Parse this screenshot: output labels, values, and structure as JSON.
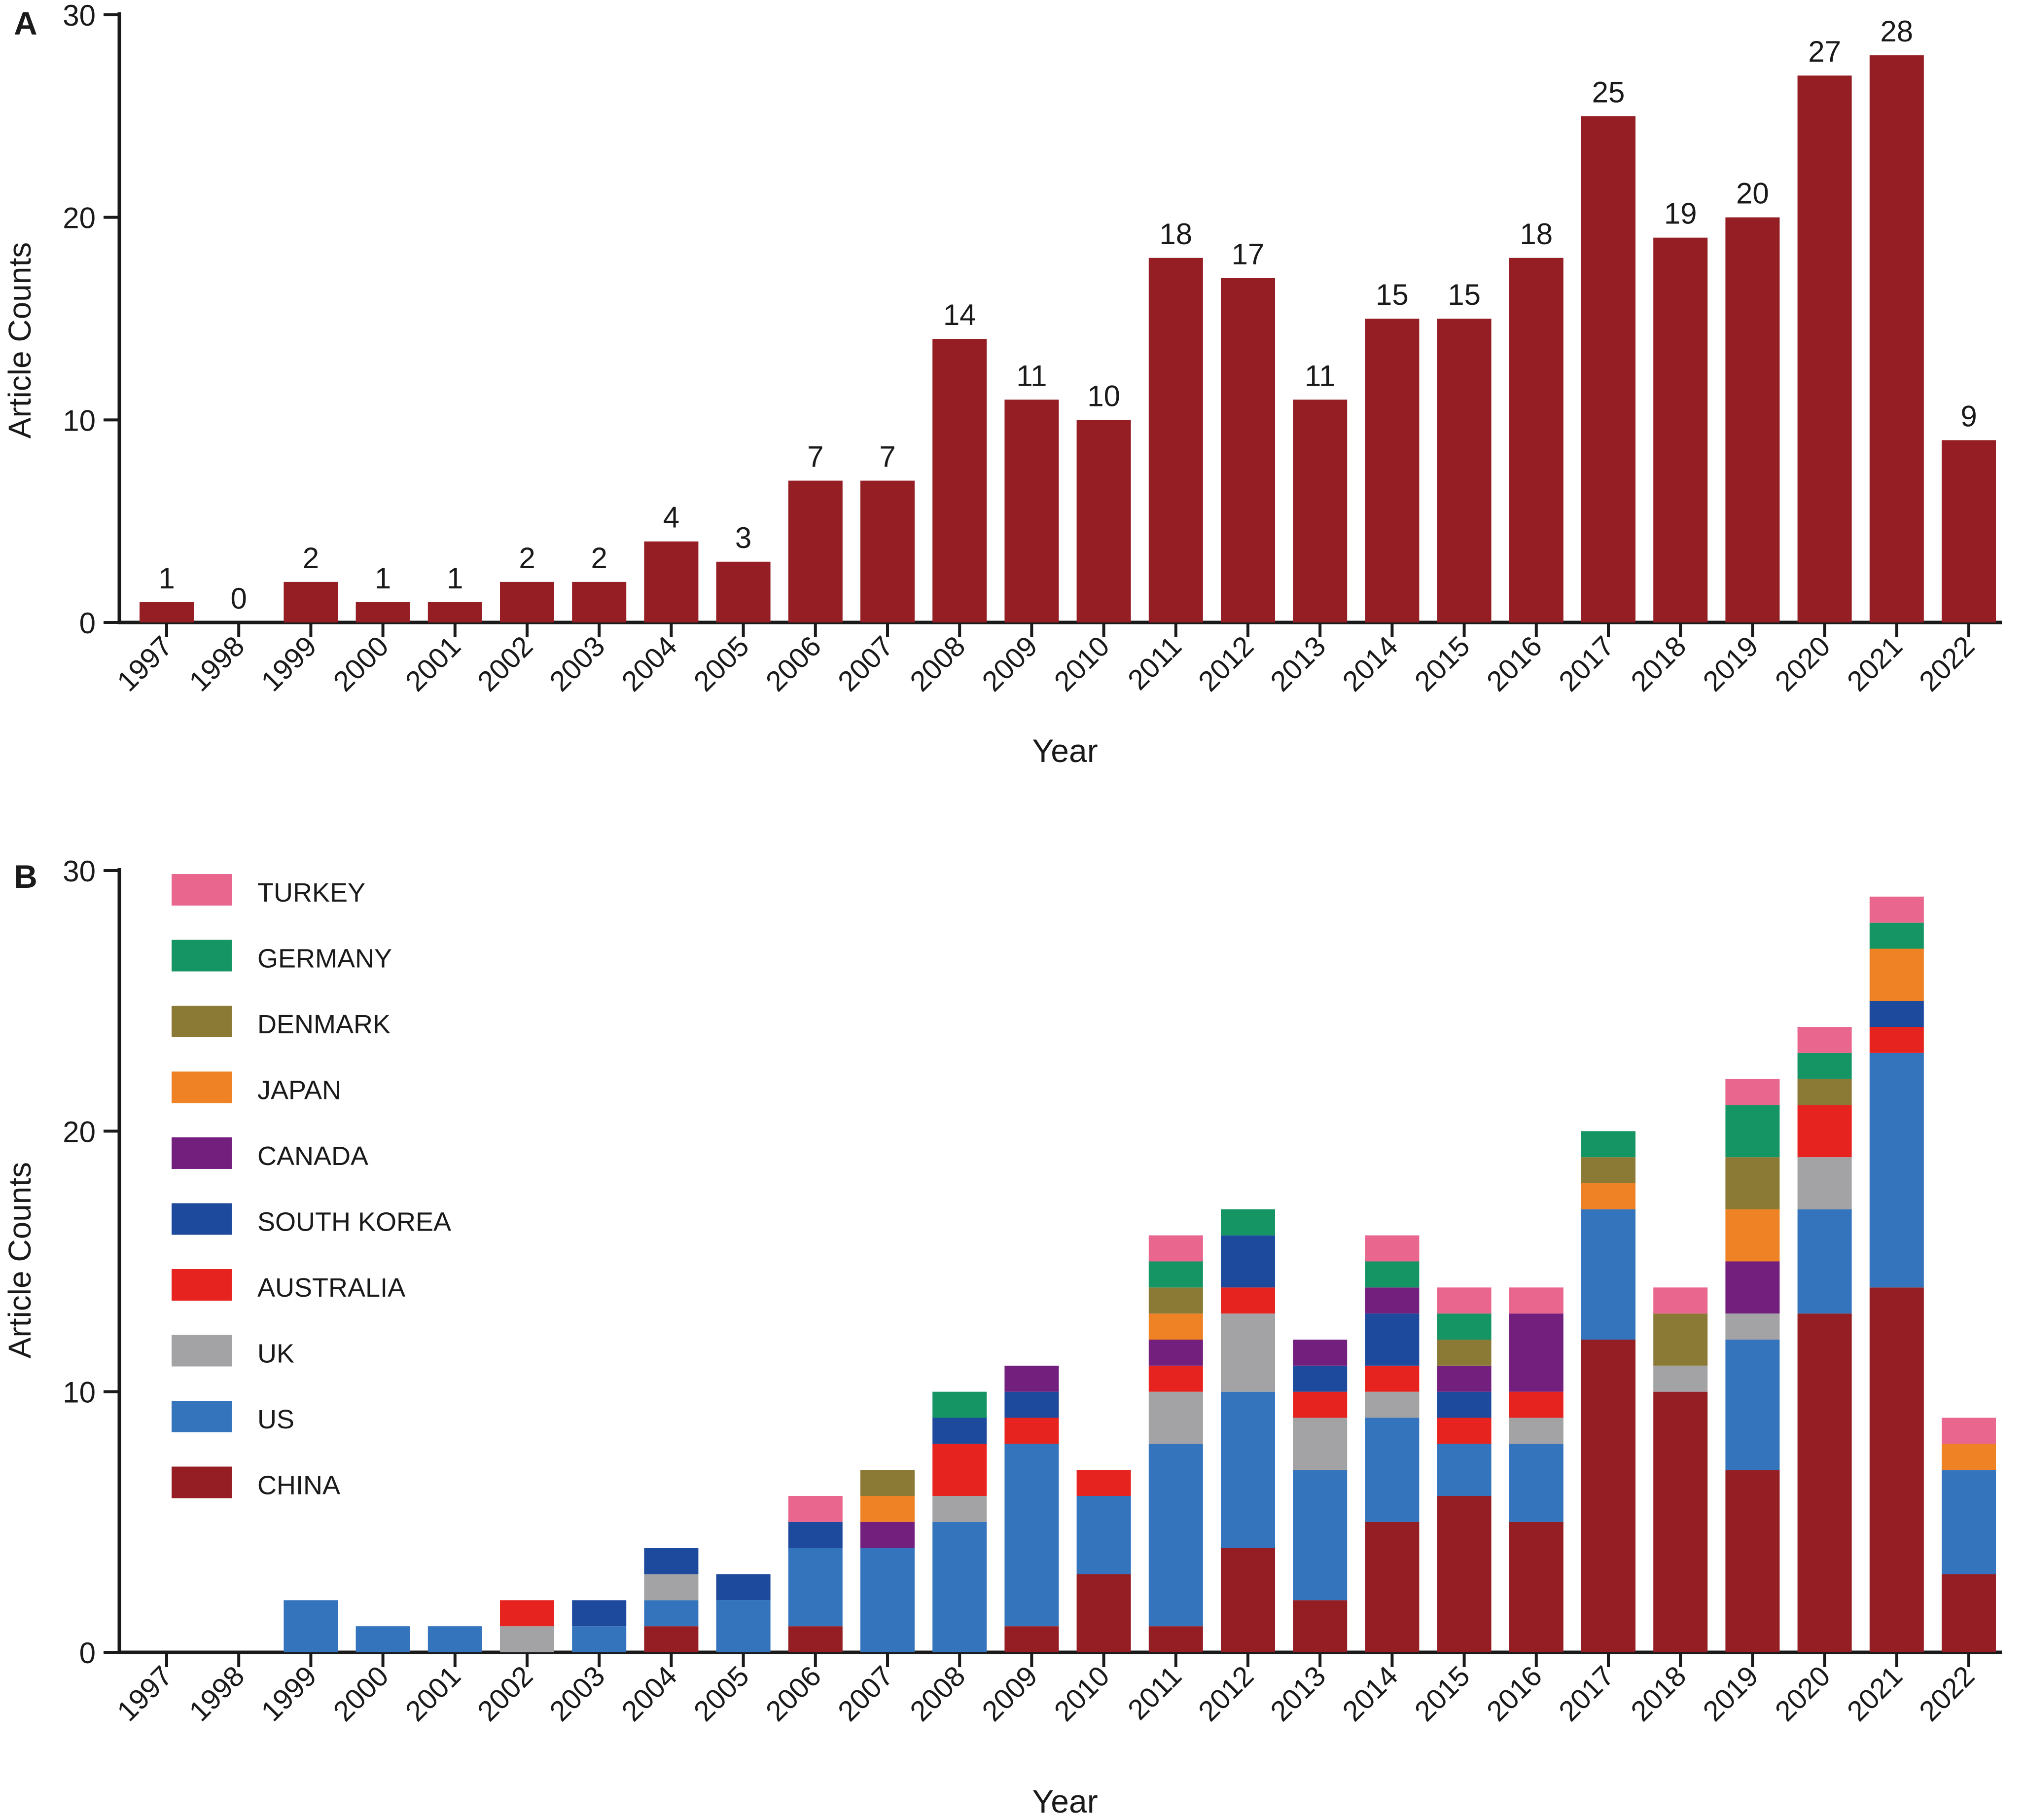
{
  "colors": {
    "CHINA": "#941e23",
    "US": "#3474bc",
    "UK": "#a3a3a6",
    "AUSTRALIA": "#e6231f",
    "SOUTH KOREA": "#1d4a9c",
    "CANADA": "#731f7e",
    "JAPAN": "#ee8224",
    "DENMARK": "#8a7a35",
    "GERMANY": "#169564",
    "TURKEY": "#e9668f"
  },
  "chart_data": [
    {
      "panel_label": "A",
      "type": "bar",
      "title": "",
      "xlabel": "Year",
      "ylabel": "Article Counts",
      "ylim": [
        0,
        30
      ],
      "yticks": [
        0,
        10,
        20,
        30
      ],
      "grid": false,
      "categories": [
        "1997",
        "1998",
        "1999",
        "2000",
        "2001",
        "2002",
        "2003",
        "2004",
        "2005",
        "2006",
        "2007",
        "2008",
        "2009",
        "2010",
        "2011",
        "2012",
        "2013",
        "2014",
        "2015",
        "2016",
        "2017",
        "2018",
        "2019",
        "2020",
        "2021",
        "2022"
      ],
      "values": [
        1,
        0,
        2,
        1,
        1,
        2,
        2,
        4,
        3,
        7,
        7,
        14,
        11,
        10,
        18,
        17,
        11,
        15,
        15,
        18,
        25,
        19,
        20,
        27,
        28,
        9
      ],
      "data_labels": [
        "1",
        "0",
        "2",
        "1",
        "1",
        "2",
        "2",
        "4",
        "3",
        "7",
        "7",
        "14",
        "11",
        "10",
        "18",
        "17",
        "11",
        "15",
        "15",
        "18",
        "25",
        "19",
        "20",
        "27",
        "28",
        "9"
      ]
    },
    {
      "panel_label": "B",
      "type": "bar",
      "stacked": true,
      "title": "",
      "xlabel": "Year",
      "ylabel": "Article Counts",
      "ylim": [
        0,
        30
      ],
      "yticks": [
        0,
        10,
        20,
        30
      ],
      "grid": false,
      "legend_position": "top-left",
      "legend_order": [
        "TURKEY",
        "GERMANY",
        "DENMARK",
        "JAPAN",
        "CANADA",
        "SOUTH KOREA",
        "AUSTRALIA",
        "UK",
        "US",
        "CHINA"
      ],
      "categories": [
        "1997",
        "1998",
        "1999",
        "2000",
        "2001",
        "2002",
        "2003",
        "2004",
        "2005",
        "2006",
        "2007",
        "2008",
        "2009",
        "2010",
        "2011",
        "2012",
        "2013",
        "2014",
        "2015",
        "2016",
        "2017",
        "2018",
        "2019",
        "2020",
        "2021",
        "2022"
      ],
      "series": [
        {
          "name": "CHINA",
          "values": [
            0,
            0,
            0,
            0,
            0,
            0,
            0,
            1,
            0,
            1,
            0,
            0,
            1,
            3,
            1,
            4,
            2,
            5,
            6,
            5,
            12,
            10,
            7,
            13,
            14,
            3
          ]
        },
        {
          "name": "US",
          "values": [
            0,
            0,
            2,
            1,
            1,
            0,
            1,
            1,
            2,
            3,
            4,
            5,
            7,
            3,
            7,
            6,
            5,
            4,
            2,
            3,
            5,
            0,
            5,
            4,
            9,
            4
          ]
        },
        {
          "name": "UK",
          "values": [
            0,
            0,
            0,
            0,
            0,
            1,
            0,
            1,
            0,
            0,
            0,
            1,
            0,
            0,
            2,
            3,
            2,
            1,
            0,
            1,
            0,
            1,
            1,
            2,
            0,
            0
          ]
        },
        {
          "name": "AUSTRALIA",
          "values": [
            0,
            0,
            0,
            0,
            0,
            1,
            0,
            0,
            0,
            0,
            0,
            2,
            1,
            1,
            1,
            1,
            1,
            1,
            1,
            1,
            0,
            0,
            0,
            2,
            1,
            0
          ]
        },
        {
          "name": "SOUTH KOREA",
          "values": [
            0,
            0,
            0,
            0,
            0,
            0,
            1,
            1,
            1,
            1,
            0,
            1,
            1,
            0,
            0,
            2,
            1,
            2,
            1,
            0,
            0,
            0,
            0,
            0,
            1,
            0
          ]
        },
        {
          "name": "CANADA",
          "values": [
            0,
            0,
            0,
            0,
            0,
            0,
            0,
            0,
            0,
            0,
            1,
            0,
            1,
            0,
            1,
            0,
            1,
            1,
            1,
            3,
            0,
            0,
            2,
            0,
            0,
            0
          ]
        },
        {
          "name": "JAPAN",
          "values": [
            0,
            0,
            0,
            0,
            0,
            0,
            0,
            0,
            0,
            0,
            1,
            0,
            0,
            0,
            1,
            0,
            0,
            0,
            0,
            0,
            1,
            0,
            2,
            0,
            2,
            1
          ]
        },
        {
          "name": "DENMARK",
          "values": [
            0,
            0,
            0,
            0,
            0,
            0,
            0,
            0,
            0,
            0,
            1,
            0,
            0,
            0,
            1,
            0,
            0,
            0,
            1,
            0,
            1,
            2,
            2,
            1,
            0,
            0
          ]
        },
        {
          "name": "GERMANY",
          "values": [
            0,
            0,
            0,
            0,
            0,
            0,
            0,
            0,
            0,
            0,
            0,
            1,
            0,
            0,
            1,
            1,
            0,
            1,
            1,
            0,
            1,
            0,
            2,
            1,
            1,
            0
          ]
        },
        {
          "name": "TURKEY",
          "values": [
            0,
            0,
            0,
            0,
            0,
            0,
            0,
            0,
            0,
            1,
            0,
            0,
            0,
            0,
            1,
            0,
            0,
            1,
            1,
            1,
            0,
            1,
            1,
            1,
            1,
            1
          ]
        }
      ]
    }
  ]
}
